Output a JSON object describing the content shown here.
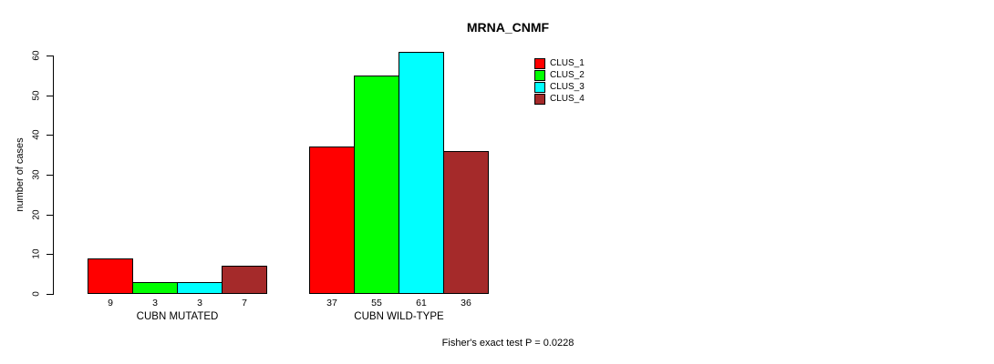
{
  "chart_data": {
    "type": "bar",
    "title": "MRNA_CNMF",
    "ylabel": "number of cases",
    "xlabel": "",
    "categories": [
      "CUBN MUTATED",
      "CUBN WILD-TYPE"
    ],
    "series": [
      {
        "name": "CLUS_1",
        "color": "#FF0000",
        "values": [
          9,
          37
        ]
      },
      {
        "name": "CLUS_2",
        "color": "#00FF00",
        "values": [
          3,
          55
        ]
      },
      {
        "name": "CLUS_3",
        "color": "#00FFFF",
        "values": [
          3,
          61
        ]
      },
      {
        "name": "CLUS_4",
        "color": "#A52A2A",
        "values": [
          7,
          36
        ]
      }
    ],
    "show_bar_value_labels": true,
    "yticks": [
      0,
      10,
      20,
      30,
      40,
      50,
      60
    ],
    "ylim": [
      0,
      61
    ],
    "grid": false,
    "legend_position": "top-right",
    "annotation": "Fisher's exact test P = 0.0228"
  }
}
